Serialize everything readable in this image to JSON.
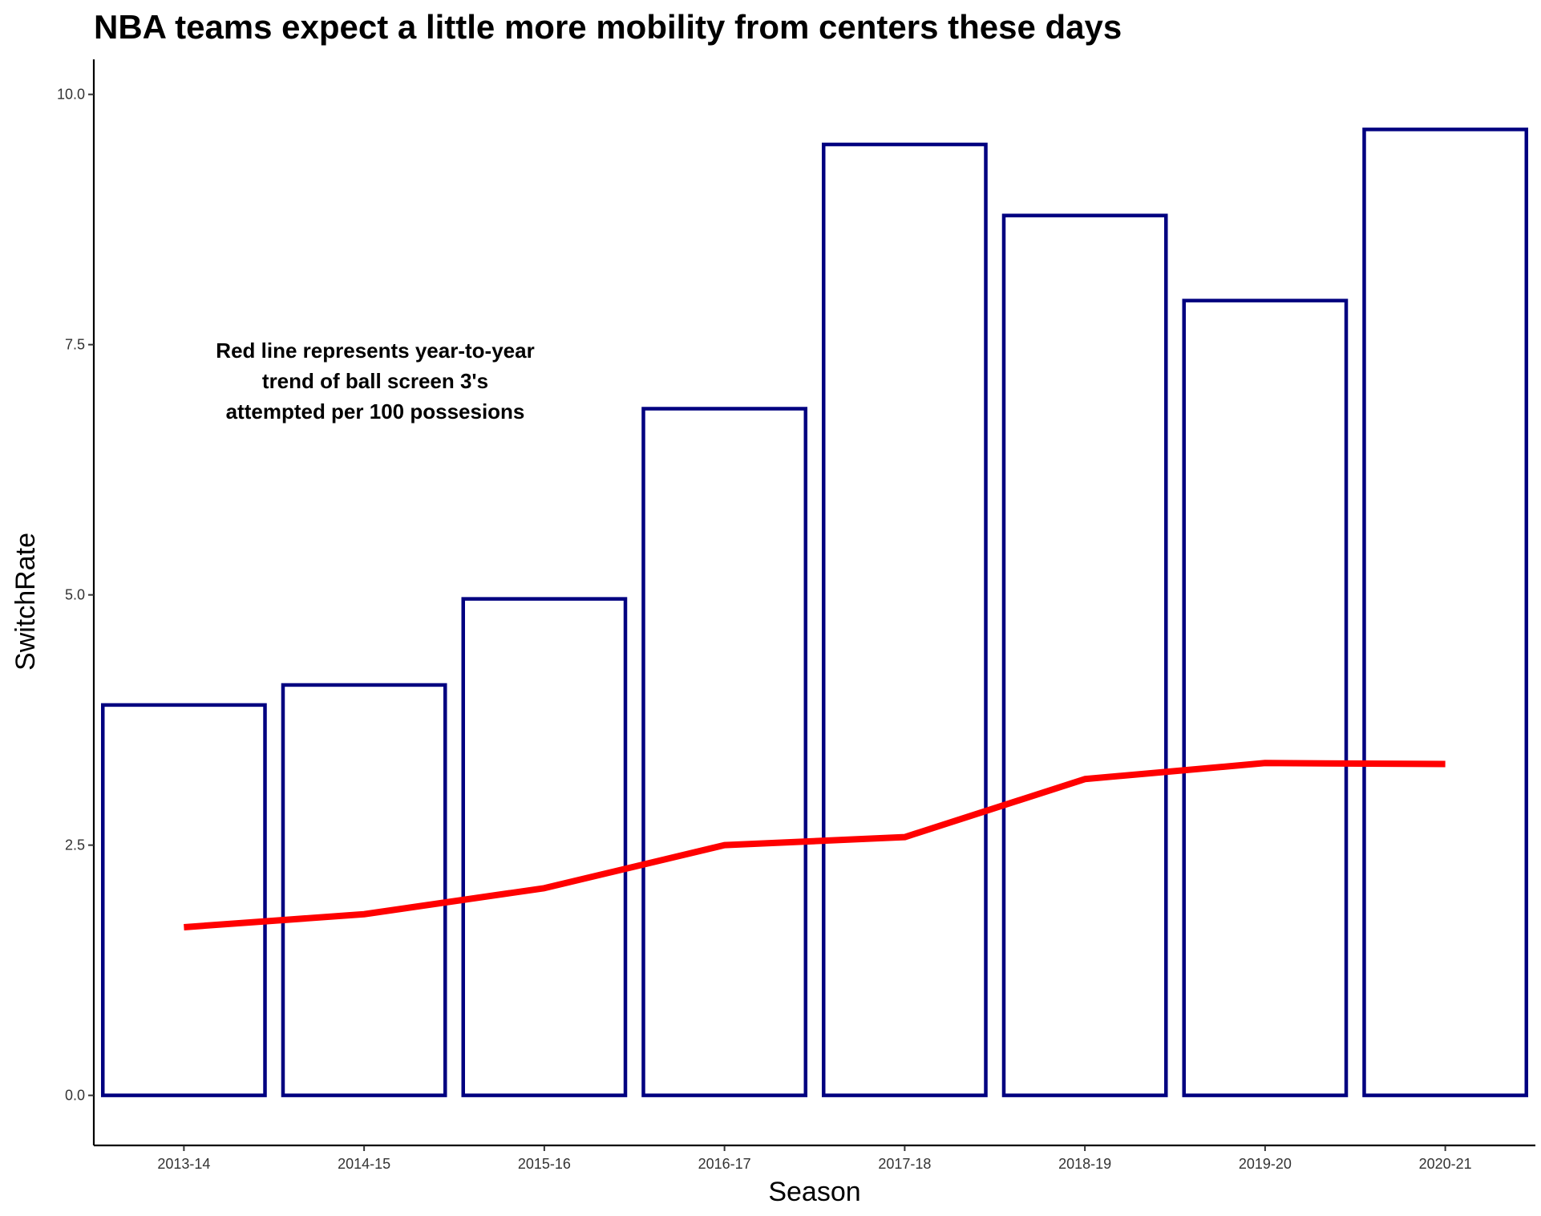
{
  "chart_data": {
    "type": "bar",
    "title": "NBA teams expect a little more mobility from centers these days",
    "xlabel": "Season",
    "ylabel": "SwitchRate",
    "categories": [
      "2013-14",
      "2014-15",
      "2015-16",
      "2016-17",
      "2017-18",
      "2018-19",
      "2019-20",
      "2020-21"
    ],
    "series": [
      {
        "type": "bar",
        "values": [
          3.9,
          4.1,
          4.96,
          6.86,
          9.5,
          8.79,
          7.94,
          9.65
        ]
      },
      {
        "type": "line",
        "values": [
          1.68,
          1.81,
          2.07,
          2.5,
          2.58,
          3.16,
          3.32,
          3.31
        ]
      }
    ],
    "ylim": [
      -0.5,
      10.35
    ],
    "yticks": [
      "0.0",
      "2.5",
      "5.0",
      "7.5",
      "10.0"
    ],
    "grid": false,
    "annotation": [
      "Red line represents year-to-year",
      "trend of ball screen 3's",
      "attempted per 100 possesions"
    ],
    "colors": {
      "bar_outline": "#000080",
      "bar_fill": "#ffffff",
      "line": "#ff0000",
      "axis": "#000000"
    }
  }
}
